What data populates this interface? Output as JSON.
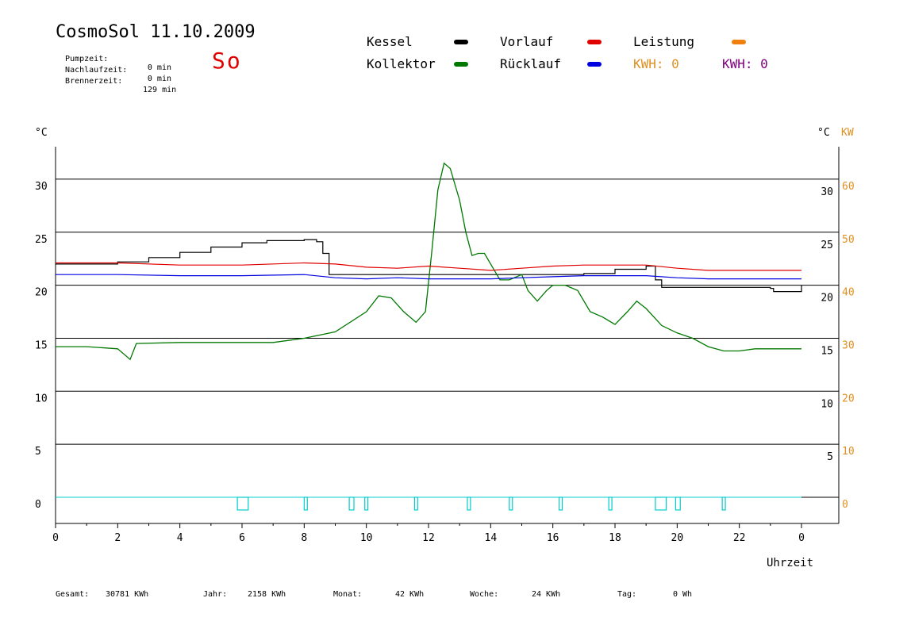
{
  "header": {
    "title": "CosmoSol 11.10.2009",
    "day": "So",
    "pumpzeit_label": "Pumpzeit:",
    "pumpzeit_value": "0 min",
    "nachlauf_label": "Nachlaufzeit:",
    "nachlauf_value": "0 min",
    "brenner_label": "Brennerzeit:",
    "brenner_value": "129 min"
  },
  "legend": {
    "kessel": "Kessel",
    "kollektor": "Kollektor",
    "vorlauf": "Vorlauf",
    "ruecklauf": "Rücklauf",
    "leistung": "Leistung",
    "kwh1": "KWH: 0",
    "kwh2": "KWH: 0"
  },
  "colors": {
    "kessel": "#000000",
    "kollektor": "#007800",
    "vorlauf": "#e00000",
    "ruecklauf": "#0000e0",
    "leistung": "#f08010",
    "kwh_orange": "#e09020",
    "kwh_purple": "#800080",
    "pump": "#00cccc",
    "kw_axis": "#e09020"
  },
  "units": {
    "left": "°C",
    "right_c": "°C",
    "right_kw": "KW",
    "xlabel": "Uhrzeit"
  },
  "stats": {
    "gesamt_label": "Gesamt:",
    "gesamt_value": "30781 KWh",
    "jahr_label": "Jahr:",
    "jahr_value": "2158 KWh",
    "monat_label": "Monat:",
    "monat_value": "42 KWh",
    "woche_label": "Woche:",
    "woche_value": "24 KWh",
    "tag_label": "Tag:",
    "tag_value": "0 Wh"
  },
  "chart_data": {
    "type": "line",
    "xlabel": "Uhrzeit",
    "ylabel": "°C",
    "ylim": [
      -2.5,
      33
    ],
    "y2label": "KW",
    "y2lim": [
      -5,
      66
    ],
    "grid": true,
    "x_ticks": [
      "0",
      "2",
      "4",
      "6",
      "8",
      "10",
      "12",
      "14",
      "16",
      "18",
      "20",
      "22",
      "0"
    ],
    "y_ticks": [
      "0",
      "5",
      "10",
      "15",
      "20",
      "25",
      "30"
    ],
    "y_ticks_right": [
      "5",
      "10",
      "15",
      "20",
      "25",
      "30"
    ],
    "y2_ticks": [
      "0",
      "10",
      "20",
      "30",
      "40",
      "50",
      "60"
    ],
    "series": [
      {
        "name": "Kessel",
        "points": [
          [
            0,
            22.0
          ],
          [
            1,
            22.0
          ],
          [
            2,
            22.2
          ],
          [
            3,
            22.6
          ],
          [
            4,
            23.1
          ],
          [
            5,
            23.6
          ],
          [
            6,
            24.0
          ],
          [
            6.8,
            24.2
          ],
          [
            7.5,
            24.2
          ],
          [
            8,
            24.3
          ],
          [
            8.4,
            24.1
          ],
          [
            8.6,
            23.0
          ],
          [
            8.8,
            21.0
          ],
          [
            10,
            21.0
          ],
          [
            12,
            21.0
          ],
          [
            14,
            21.0
          ],
          [
            15,
            21.0
          ],
          [
            16,
            21.0
          ],
          [
            17,
            21.1
          ],
          [
            18,
            21.5
          ],
          [
            19,
            21.8
          ],
          [
            19.2,
            21.8
          ],
          [
            19.3,
            20.5
          ],
          [
            19.5,
            19.8
          ],
          [
            20,
            19.8
          ],
          [
            21,
            19.8
          ],
          [
            22,
            19.8
          ],
          [
            23,
            19.7
          ],
          [
            23.1,
            19.4
          ],
          [
            24,
            20.0
          ]
        ]
      },
      {
        "name": "Kollektor",
        "points": [
          [
            0,
            14.2
          ],
          [
            1,
            14.2
          ],
          [
            2,
            14.0
          ],
          [
            2.4,
            13.0
          ],
          [
            2.6,
            14.5
          ],
          [
            4,
            14.6
          ],
          [
            6,
            14.6
          ],
          [
            7,
            14.6
          ],
          [
            8,
            15.0
          ],
          [
            9,
            15.6
          ],
          [
            10,
            17.5
          ],
          [
            10.4,
            19.0
          ],
          [
            10.8,
            18.8
          ],
          [
            11.2,
            17.5
          ],
          [
            11.6,
            16.5
          ],
          [
            11.9,
            17.5
          ],
          [
            12.1,
            23.0
          ],
          [
            12.3,
            29.0
          ],
          [
            12.5,
            31.5
          ],
          [
            12.7,
            31.0
          ],
          [
            13.0,
            28.0
          ],
          [
            13.2,
            25.0
          ],
          [
            13.4,
            22.8
          ],
          [
            13.6,
            23.0
          ],
          [
            13.8,
            23.0
          ],
          [
            14.0,
            22.0
          ],
          [
            14.3,
            20.5
          ],
          [
            14.6,
            20.5
          ],
          [
            15.0,
            21.0
          ],
          [
            15.2,
            19.5
          ],
          [
            15.5,
            18.5
          ],
          [
            15.8,
            19.5
          ],
          [
            16,
            20.0
          ],
          [
            16.4,
            20.0
          ],
          [
            16.8,
            19.5
          ],
          [
            17.2,
            17.5
          ],
          [
            17.6,
            17.0
          ],
          [
            18,
            16.3
          ],
          [
            18.4,
            17.5
          ],
          [
            18.7,
            18.5
          ],
          [
            19.0,
            17.8
          ],
          [
            19.5,
            16.2
          ],
          [
            20,
            15.5
          ],
          [
            20.5,
            15.0
          ],
          [
            21,
            14.2
          ],
          [
            21.5,
            13.8
          ],
          [
            22,
            13.8
          ],
          [
            22.5,
            14.0
          ],
          [
            23,
            14.0
          ],
          [
            24,
            14.0
          ]
        ]
      },
      {
        "name": "Vorlauf",
        "points": [
          [
            0,
            22.1
          ],
          [
            2,
            22.1
          ],
          [
            4,
            21.9
          ],
          [
            6,
            21.9
          ],
          [
            8,
            22.1
          ],
          [
            9,
            22.0
          ],
          [
            10,
            21.7
          ],
          [
            11,
            21.6
          ],
          [
            12,
            21.8
          ],
          [
            13,
            21.6
          ],
          [
            14,
            21.4
          ],
          [
            15,
            21.6
          ],
          [
            16,
            21.8
          ],
          [
            17,
            21.9
          ],
          [
            18,
            21.9
          ],
          [
            19,
            21.9
          ],
          [
            20,
            21.6
          ],
          [
            21,
            21.4
          ],
          [
            22,
            21.4
          ],
          [
            24,
            21.4
          ]
        ]
      },
      {
        "name": "Rücklauf",
        "points": [
          [
            0,
            21.0
          ],
          [
            2,
            21.0
          ],
          [
            4,
            20.9
          ],
          [
            6,
            20.9
          ],
          [
            8,
            21.0
          ],
          [
            9,
            20.7
          ],
          [
            10,
            20.6
          ],
          [
            11,
            20.7
          ],
          [
            12,
            20.6
          ],
          [
            13,
            20.6
          ],
          [
            14,
            20.6
          ],
          [
            15,
            20.7
          ],
          [
            16,
            20.8
          ],
          [
            17,
            20.9
          ],
          [
            18,
            20.9
          ],
          [
            19,
            20.9
          ],
          [
            20,
            20.7
          ],
          [
            21,
            20.6
          ],
          [
            22,
            20.6
          ],
          [
            24,
            20.6
          ]
        ]
      },
      {
        "name": "Pumpe",
        "bars": [
          [
            5.85,
            6.2
          ],
          [
            8.0,
            8.1
          ],
          [
            9.45,
            9.6
          ],
          [
            9.95,
            10.05
          ],
          [
            11.55,
            11.65
          ],
          [
            13.25,
            13.35
          ],
          [
            14.6,
            14.7
          ],
          [
            16.2,
            16.3
          ],
          [
            17.8,
            17.9
          ],
          [
            19.3,
            19.65
          ],
          [
            19.95,
            20.1
          ],
          [
            21.45,
            21.55
          ]
        ]
      }
    ]
  }
}
